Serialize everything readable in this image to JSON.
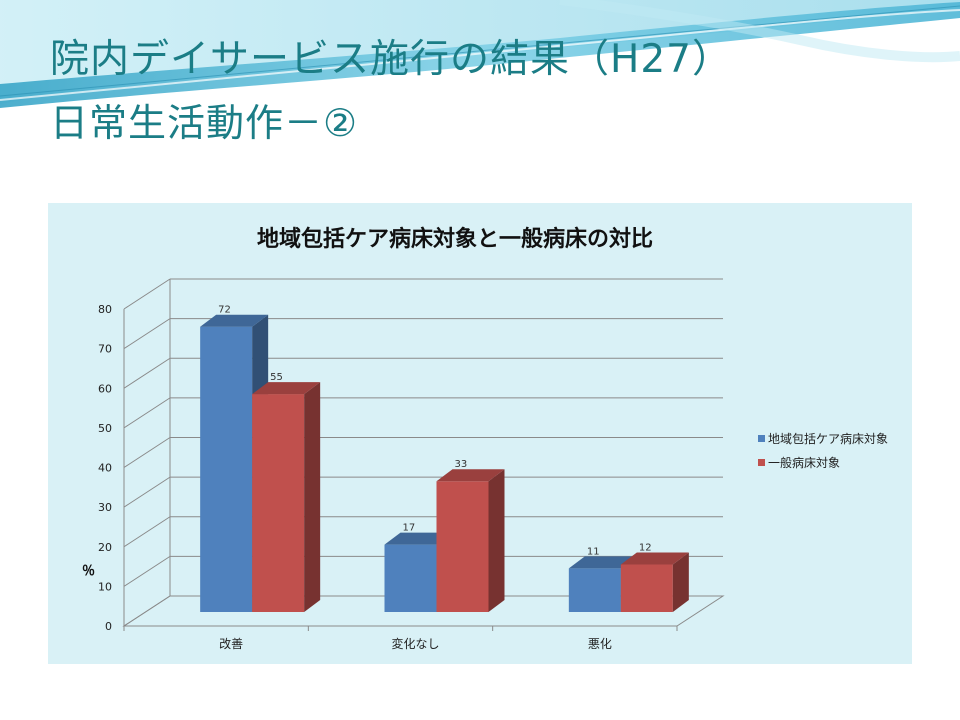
{
  "slide": {
    "title_line1": "院内デイサービス施行の結果（H27）",
    "title_line2": "日常生活動作－②"
  },
  "colors": {
    "title_text": "#1b7d86",
    "chart_background": "#d9f1f6",
    "series_blue": "#4f81bd",
    "series_red": "#c0504d"
  },
  "chart_data": {
    "type": "bar",
    "title": "地域包括ケア病床対象と一般病床の対比",
    "ylabel": "％",
    "xlabel": "",
    "categories": [
      "改善",
      "変化なし",
      "悪化"
    ],
    "series": [
      {
        "name": "地域包括ケア病床対象",
        "values": [
          72,
          17,
          11
        ]
      },
      {
        "name": "一般病床対象",
        "values": [
          55,
          33,
          12
        ]
      }
    ],
    "ylim": [
      0,
      80
    ],
    "yticks": [
      0,
      10,
      20,
      30,
      40,
      50,
      60,
      70,
      80
    ],
    "grid": true,
    "legend_position": "right",
    "style": "3d-clustered"
  }
}
